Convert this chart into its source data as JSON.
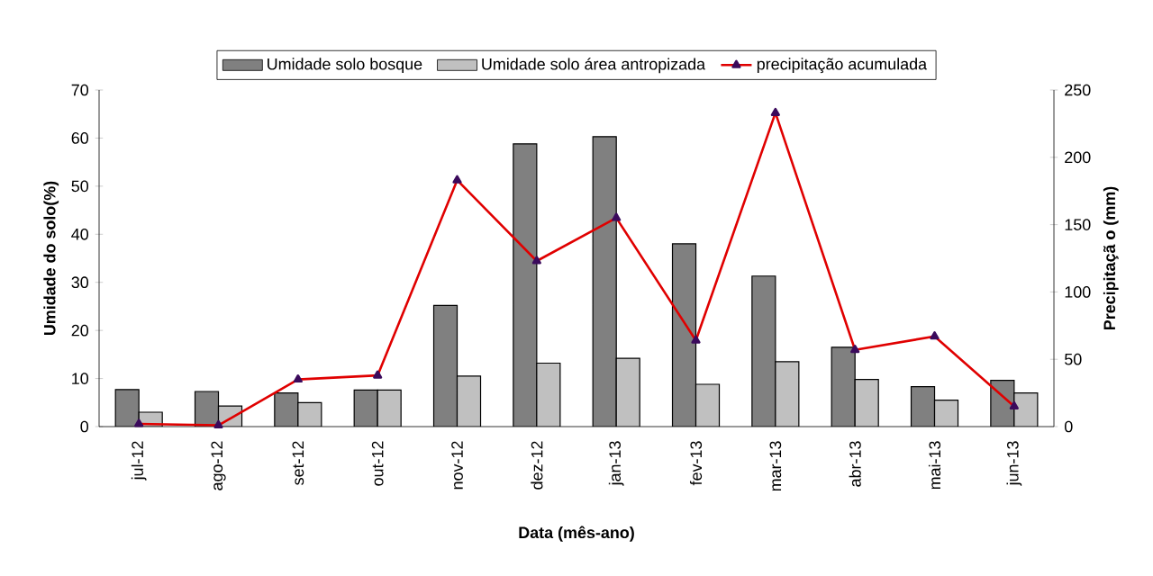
{
  "chart_data": {
    "type": "bar",
    "xlabel": "Data (mês-ano)",
    "ylabel": "Umidade do solo(%)",
    "y2label": "Precipitaçã o (mm)",
    "categories": [
      "jul-12",
      "ago-12",
      "set-12",
      "out-12",
      "nov-12",
      "dez-12",
      "jan-13",
      "fev-13",
      "mar-13",
      "abr-13",
      "mai-13",
      "jun-13"
    ],
    "series": [
      {
        "name": "Umidade solo bosque",
        "color": "#808080",
        "values": [
          7.7,
          7.3,
          7.0,
          7.6,
          25.2,
          58.8,
          60.3,
          38.0,
          31.3,
          16.5,
          8.3,
          9.6
        ]
      },
      {
        "name": "Umidade solo área antropizada",
        "color": "#c0c0c0",
        "values": [
          3.0,
          4.3,
          5.0,
          7.6,
          10.5,
          13.2,
          14.2,
          8.8,
          13.5,
          9.8,
          5.5,
          7.0
        ]
      },
      {
        "name": "precipitação acumulada",
        "type": "line",
        "axis": "y2",
        "color": "#e00000",
        "marker": "triangle",
        "values": [
          2,
          1,
          35,
          38,
          183,
          123,
          155,
          64,
          233,
          57,
          67,
          15
        ]
      }
    ],
    "ylim": [
      0,
      70
    ],
    "yticks": [
      0,
      10,
      20,
      30,
      40,
      50,
      60,
      70
    ],
    "y2lim": [
      0,
      250
    ],
    "y2ticks": [
      0,
      50,
      100,
      150,
      200,
      250
    ],
    "grid": false,
    "legend": "top"
  }
}
